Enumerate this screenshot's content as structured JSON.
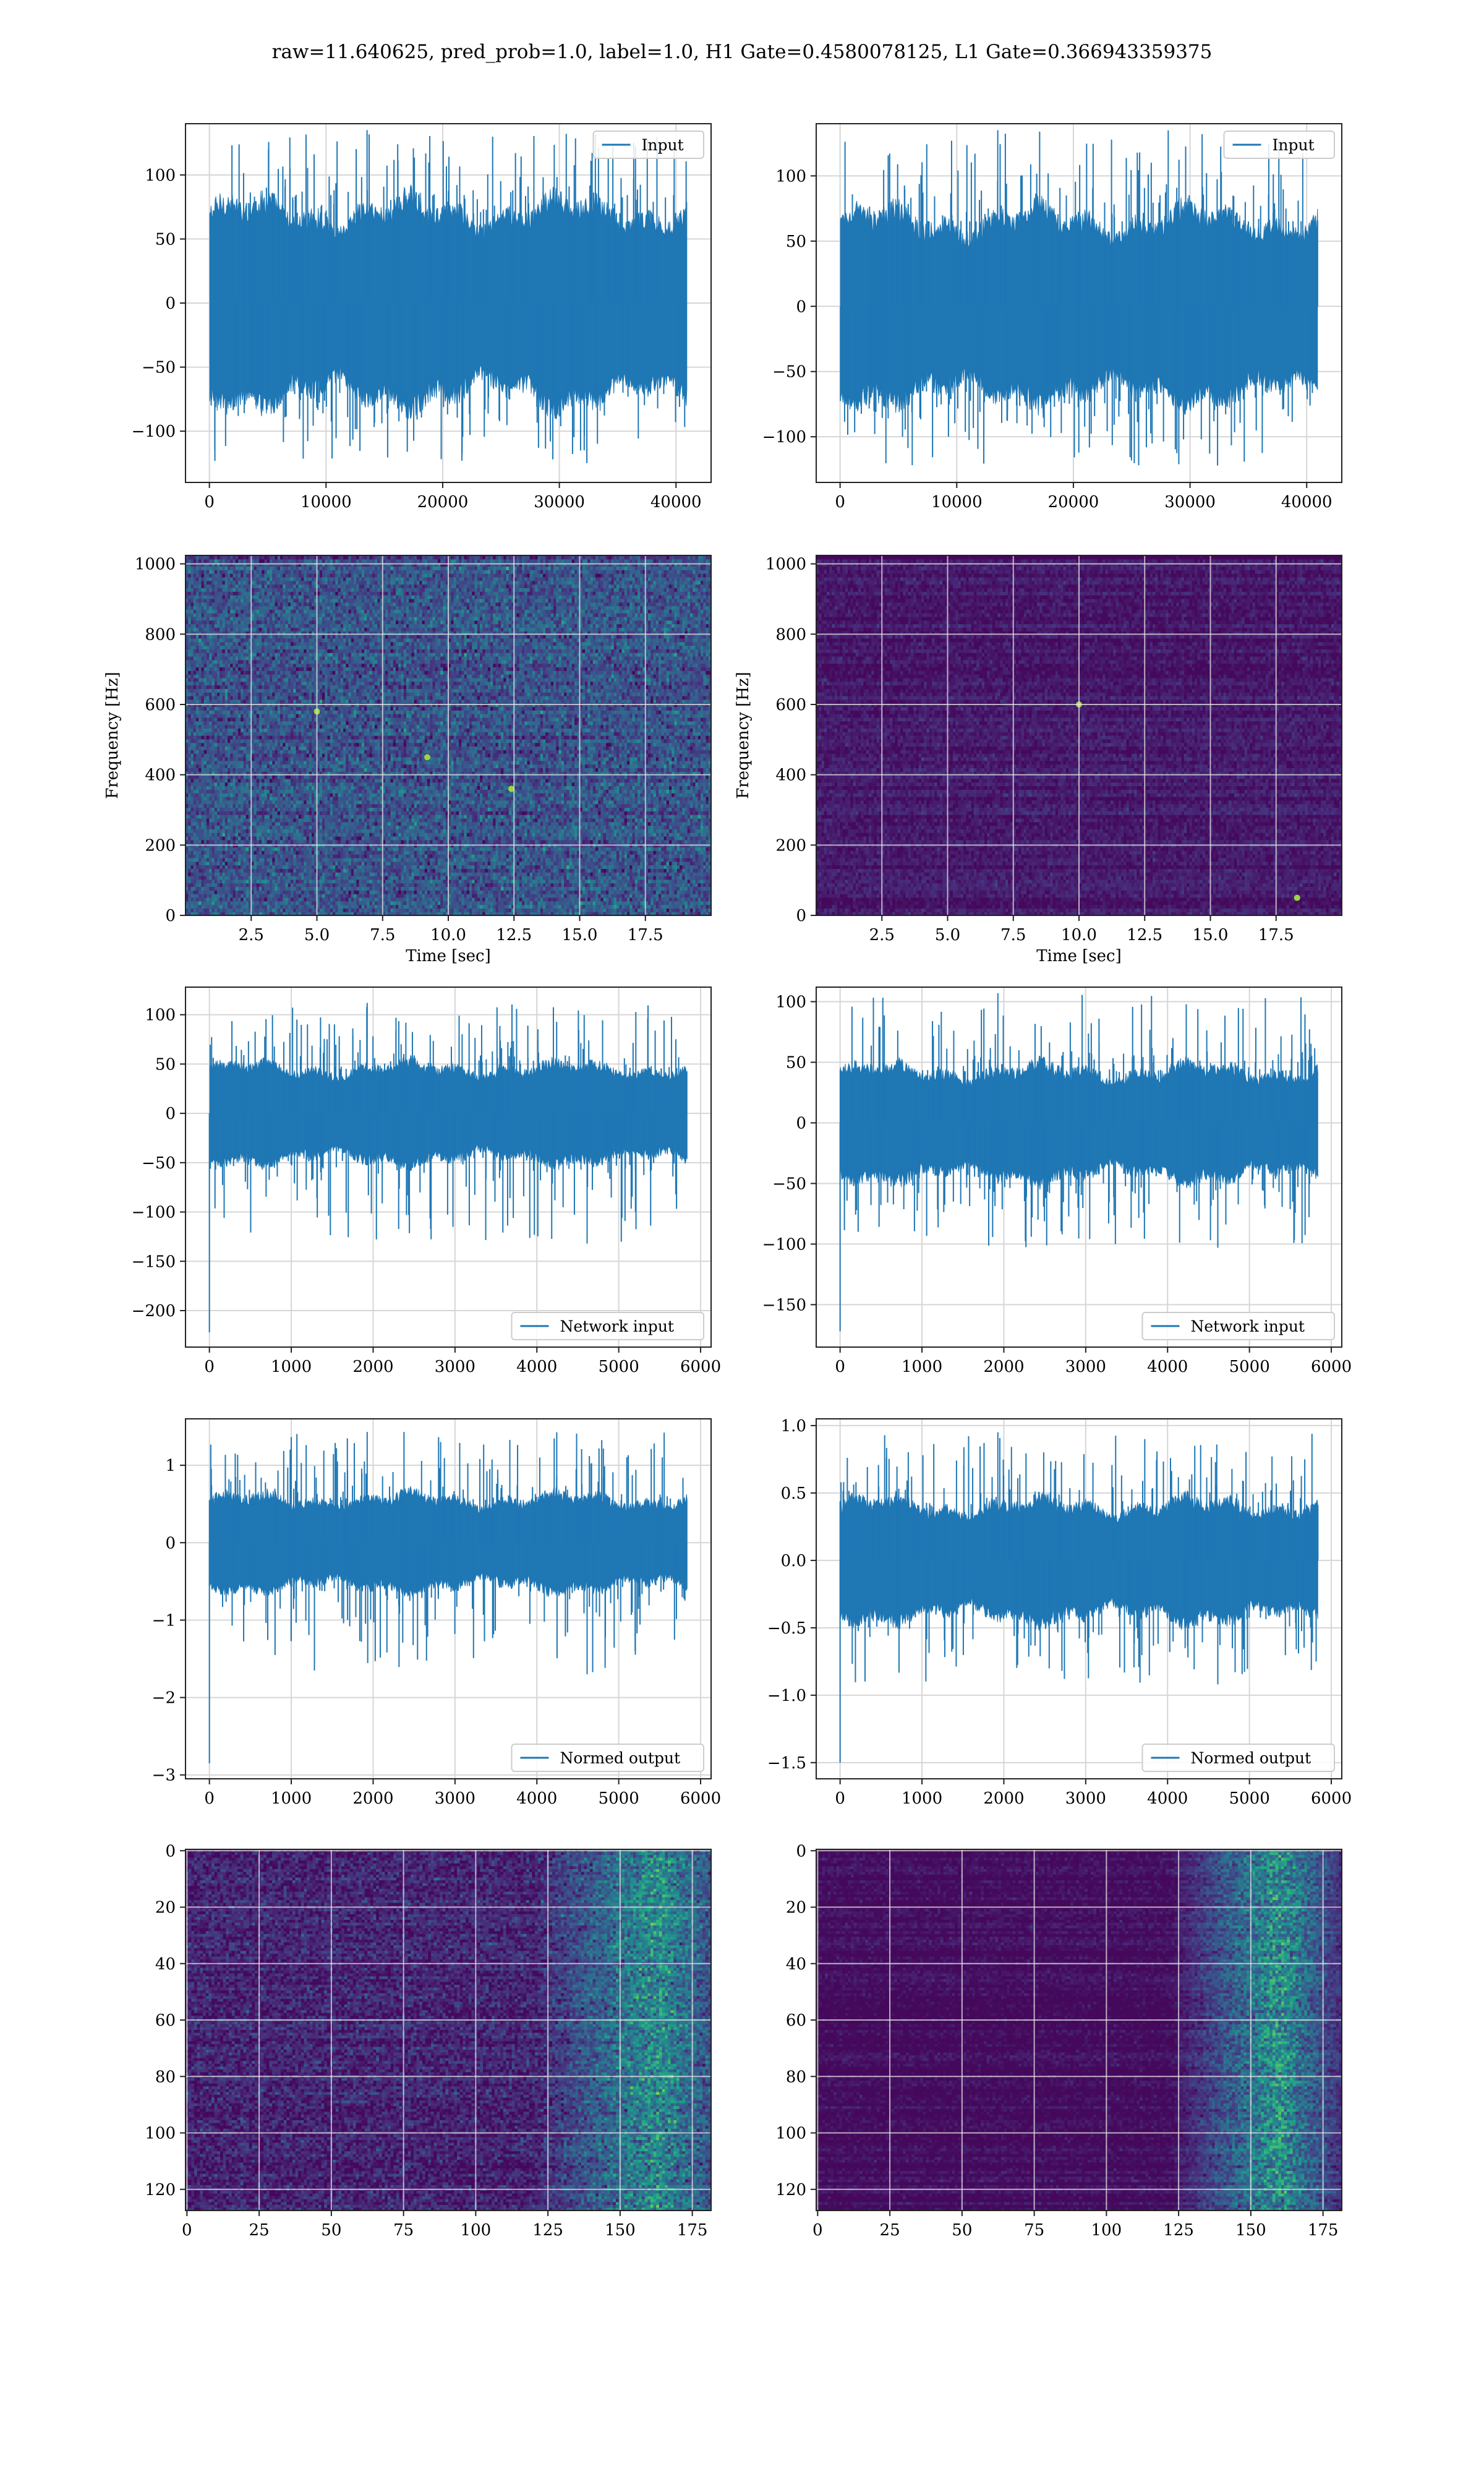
{
  "figure": {
    "title": "raw=11.640625, pred_prob=1.0, label=1.0, H1 Gate=0.4580078125, L1 Gate=0.366943359375"
  },
  "chart_data": [
    {
      "id": "h1-input",
      "type": "line",
      "row": 0,
      "col": 0,
      "series": [
        {
          "name": "Input",
          "color": "#1f77b4"
        }
      ],
      "legend": "upper right",
      "grid": true,
      "xlim": [
        -2048,
        43008
      ],
      "ylim": [
        -140,
        140
      ],
      "xticks": [
        0,
        10000,
        20000,
        30000,
        40000
      ],
      "xticklabels": [
        "0",
        "10000",
        "20000",
        "30000",
        "40000"
      ],
      "yticks": [
        -100,
        -50,
        0,
        50,
        100
      ],
      "yticklabels": [
        "−100",
        "−50",
        "0",
        "50",
        "100"
      ],
      "signal": {
        "n": 40960,
        "envelope": [
          -70,
          70
        ],
        "spike_max": 135,
        "spike_min": -125,
        "first_sample": 0
      }
    },
    {
      "id": "l1-input",
      "type": "line",
      "row": 0,
      "col": 1,
      "series": [
        {
          "name": "Input",
          "color": "#1f77b4"
        }
      ],
      "legend": "upper right",
      "grid": true,
      "xlim": [
        -2048,
        43008
      ],
      "ylim": [
        -135,
        140
      ],
      "xticks": [
        0,
        10000,
        20000,
        30000,
        40000
      ],
      "xticklabels": [
        "0",
        "10000",
        "20000",
        "30000",
        "40000"
      ],
      "yticks": [
        -100,
        -50,
        0,
        50,
        100
      ],
      "yticklabels": [
        "−100",
        "−50",
        "0",
        "50",
        "100"
      ],
      "signal": {
        "n": 40960,
        "envelope": [
          -65,
          65
        ],
        "spike_max": 135,
        "spike_min": -122,
        "first_sample": 0
      }
    },
    {
      "id": "h1-spectrogram",
      "type": "heatmap",
      "row": 1,
      "col": 0,
      "grid": true,
      "xlabel": "Time [sec]",
      "ylabel": "Frequency [Hz]",
      "xlim": [
        0,
        20
      ],
      "ylim": [
        0,
        1024
      ],
      "xticks": [
        2.5,
        5.0,
        7.5,
        10.0,
        12.5,
        15.0,
        17.5
      ],
      "xticklabels": [
        "2.5",
        "5.0",
        "7.5",
        "10.0",
        "12.5",
        "15.0",
        "17.5"
      ],
      "yticks": [
        0,
        200,
        400,
        600,
        800,
        1000
      ],
      "yticklabels": [
        "0",
        "200",
        "400",
        "600",
        "800",
        "1000"
      ],
      "colormap": "viridis",
      "texture": {
        "cols": 200,
        "rows": 100,
        "level": 0.26,
        "spread": 0.16,
        "line_rows": [
          49,
          28,
          99
        ],
        "hot": [
          [
            9.2,
            450
          ],
          [
            5.0,
            580
          ],
          [
            12.4,
            360
          ]
        ]
      }
    },
    {
      "id": "l1-spectrogram",
      "type": "heatmap",
      "row": 1,
      "col": 1,
      "grid": true,
      "xlabel": "Time [sec]",
      "ylabel": "Frequency [Hz]",
      "xlim": [
        0,
        20
      ],
      "ylim": [
        0,
        1024
      ],
      "xticks": [
        2.5,
        5.0,
        7.5,
        10.0,
        12.5,
        15.0,
        17.5
      ],
      "xticklabels": [
        "2.5",
        "5.0",
        "7.5",
        "10.0",
        "12.5",
        "15.0",
        "17.5"
      ],
      "yticks": [
        0,
        200,
        400,
        600,
        800,
        1000
      ],
      "yticklabels": [
        "0",
        "200",
        "400",
        "600",
        "800",
        "1000"
      ],
      "colormap": "viridis",
      "texture": {
        "cols": 200,
        "rows": 100,
        "level": 0.07,
        "spread": 0.06,
        "line_rows": [
          99
        ],
        "hot": [
          [
            18.3,
            50
          ],
          [
            10.0,
            600
          ]
        ]
      }
    },
    {
      "id": "h1-network-input",
      "type": "line",
      "row": 2,
      "col": 0,
      "series": [
        {
          "name": "Network input",
          "color": "#1f77b4"
        }
      ],
      "legend": "lower right",
      "grid": true,
      "xlim": [
        -292,
        6128
      ],
      "ylim": [
        -237,
        128
      ],
      "xticks": [
        0,
        1000,
        2000,
        3000,
        4000,
        5000,
        6000
      ],
      "xticklabels": [
        "0",
        "1000",
        "2000",
        "3000",
        "4000",
        "5000",
        "6000"
      ],
      "yticks": [
        -200,
        -150,
        -100,
        -50,
        0,
        50,
        100
      ],
      "yticklabels": [
        "−200",
        "−150",
        "−100",
        "−50",
        "0",
        "50",
        "100"
      ],
      "signal": {
        "n": 5840,
        "envelope": [
          -45,
          45
        ],
        "spike_max": 112,
        "spike_min": -132,
        "first_sample": -222
      }
    },
    {
      "id": "l1-network-input",
      "type": "line",
      "row": 2,
      "col": 1,
      "series": [
        {
          "name": "Network input",
          "color": "#1f77b4"
        }
      ],
      "legend": "lower right",
      "grid": true,
      "xlim": [
        -292,
        6128
      ],
      "ylim": [
        -185,
        112
      ],
      "xticks": [
        0,
        1000,
        2000,
        3000,
        4000,
        5000,
        6000
      ],
      "xticklabels": [
        "0",
        "1000",
        "2000",
        "3000",
        "4000",
        "5000",
        "6000"
      ],
      "yticks": [
        -150,
        -100,
        -50,
        0,
        50,
        100
      ],
      "yticklabels": [
        "−150",
        "−100",
        "−50",
        "0",
        "50",
        "100"
      ],
      "signal": {
        "n": 5840,
        "envelope": [
          -42,
          42
        ],
        "spike_max": 107,
        "spike_min": -103,
        "first_sample": -172
      }
    },
    {
      "id": "h1-normed-output",
      "type": "line",
      "row": 3,
      "col": 0,
      "series": [
        {
          "name": "Normed output",
          "color": "#1f77b4"
        }
      ],
      "legend": "lower right",
      "grid": true,
      "xlim": [
        -292,
        6128
      ],
      "ylim": [
        -3.05,
        1.6
      ],
      "xticks": [
        0,
        1000,
        2000,
        3000,
        4000,
        5000,
        6000
      ],
      "xticklabels": [
        "0",
        "1000",
        "2000",
        "3000",
        "4000",
        "5000",
        "6000"
      ],
      "yticks": [
        -3,
        -2,
        -1,
        0,
        1
      ],
      "yticklabels": [
        "−3",
        "−2",
        "−1",
        "0",
        "1"
      ],
      "signal": {
        "n": 5840,
        "envelope": [
          -0.55,
          0.55
        ],
        "spike_max": 1.43,
        "spike_min": -1.7,
        "first_sample": -2.85
      }
    },
    {
      "id": "l1-normed-output",
      "type": "line",
      "row": 3,
      "col": 1,
      "series": [
        {
          "name": "Normed output",
          "color": "#1f77b4"
        }
      ],
      "legend": "lower right",
      "grid": true,
      "xlim": [
        -292,
        6128
      ],
      "ylim": [
        -1.62,
        1.05
      ],
      "xticks": [
        0,
        1000,
        2000,
        3000,
        4000,
        5000,
        6000
      ],
      "xticklabels": [
        "0",
        "1000",
        "2000",
        "3000",
        "4000",
        "5000",
        "6000"
      ],
      "yticks": [
        -1.5,
        -1.0,
        -0.5,
        0.0,
        0.5,
        1.0
      ],
      "yticklabels": [
        "−1.5",
        "−1.0",
        "−0.5",
        "0.0",
        "0.5",
        "1.0"
      ],
      "signal": {
        "n": 5840,
        "envelope": [
          -0.4,
          0.4
        ],
        "spike_max": 0.95,
        "spike_min": -0.92,
        "first_sample": -1.5
      }
    },
    {
      "id": "h1-feature-map",
      "type": "heatmap",
      "row": 4,
      "col": 0,
      "grid": true,
      "xlim": [
        -0.5,
        181.5
      ],
      "ylim": [
        127.5,
        -0.5
      ],
      "xticks": [
        0,
        25,
        50,
        75,
        100,
        125,
        150,
        175
      ],
      "xticklabels": [
        "0",
        "25",
        "50",
        "75",
        "100",
        "125",
        "150",
        "175"
      ],
      "yticks": [
        0,
        20,
        40,
        60,
        80,
        100,
        120
      ],
      "yticklabels": [
        "0",
        "20",
        "40",
        "60",
        "80",
        "100",
        "120"
      ],
      "colormap": "viridis",
      "texture": {
        "cols": 182,
        "rows": 128,
        "level": 0.1,
        "spread": 0.12,
        "ramp_start": 120,
        "ramp_peak": 163,
        "ramp_gain": 0.45
      }
    },
    {
      "id": "l1-feature-map",
      "type": "heatmap",
      "row": 4,
      "col": 1,
      "grid": true,
      "xlim": [
        -0.5,
        181.5
      ],
      "ylim": [
        127.5,
        -0.5
      ],
      "xticks": [
        0,
        25,
        50,
        75,
        100,
        125,
        150,
        175
      ],
      "xticklabels": [
        "0",
        "25",
        "50",
        "75",
        "100",
        "125",
        "150",
        "175"
      ],
      "yticks": [
        0,
        20,
        40,
        60,
        80,
        100,
        120
      ],
      "yticklabels": [
        "0",
        "20",
        "40",
        "60",
        "80",
        "100",
        "120"
      ],
      "colormap": "viridis",
      "texture": {
        "cols": 182,
        "rows": 128,
        "level": 0.03,
        "spread": 0.05,
        "ramp_start": 122,
        "ramp_peak": 160,
        "ramp_gain": 0.55
      }
    }
  ]
}
